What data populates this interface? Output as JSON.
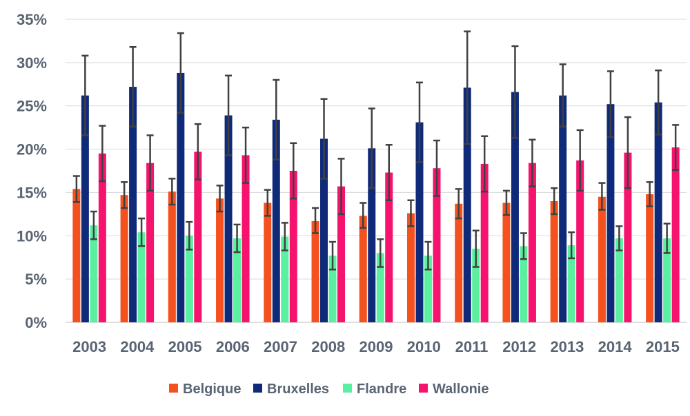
{
  "chart_data": {
    "type": "bar",
    "categories": [
      "2003",
      "2004",
      "2005",
      "2006",
      "2007",
      "2008",
      "2009",
      "2010",
      "2011",
      "2012",
      "2013",
      "2014",
      "2015"
    ],
    "ylim": [
      0,
      35
    ],
    "yticks": [
      0,
      5,
      10,
      15,
      20,
      25,
      30,
      35
    ],
    "ytick_labels": [
      "0%",
      "5%",
      "10%",
      "15%",
      "20%",
      "25%",
      "30%",
      "35%"
    ],
    "grid": true,
    "legend_position": "bottom",
    "series": [
      {
        "name": "Belgique",
        "color": "#f4511e",
        "values": [
          15.4,
          14.7,
          15.1,
          14.3,
          13.8,
          11.7,
          12.3,
          12.6,
          13.7,
          13.8,
          14.0,
          14.5,
          14.8
        ],
        "err_low": [
          13.9,
          13.2,
          13.6,
          12.8,
          12.3,
          10.3,
          10.9,
          11.1,
          12.0,
          12.4,
          12.5,
          13.0,
          13.4
        ],
        "err_high": [
          16.9,
          16.2,
          16.6,
          15.8,
          15.3,
          13.2,
          13.8,
          14.1,
          15.4,
          15.2,
          15.5,
          16.1,
          16.2
        ]
      },
      {
        "name": "Bruxelles",
        "color": "#102a7a",
        "values": [
          26.2,
          27.2,
          28.8,
          23.9,
          23.4,
          21.2,
          20.1,
          23.1,
          27.1,
          26.6,
          26.2,
          25.2,
          25.4
        ],
        "err_low": [
          21.6,
          22.6,
          24.2,
          19.3,
          18.8,
          16.6,
          15.5,
          18.5,
          20.6,
          21.3,
          22.6,
          21.4,
          21.7
        ],
        "err_high": [
          30.8,
          31.8,
          33.4,
          28.5,
          28.0,
          25.8,
          24.7,
          27.7,
          33.6,
          31.9,
          29.8,
          29.0,
          29.1
        ]
      },
      {
        "name": "Flandre",
        "color": "#5af0a0",
        "values": [
          11.2,
          10.4,
          10.0,
          9.7,
          9.9,
          7.7,
          8.0,
          7.7,
          8.5,
          8.8,
          8.9,
          9.7,
          9.7
        ],
        "err_low": [
          9.6,
          8.8,
          8.4,
          8.1,
          8.3,
          6.1,
          6.4,
          6.1,
          6.4,
          7.3,
          7.4,
          8.3,
          8.0
        ],
        "err_high": [
          12.8,
          12.0,
          11.6,
          11.3,
          11.5,
          9.3,
          9.6,
          9.3,
          10.6,
          10.3,
          10.4,
          11.1,
          11.4
        ]
      },
      {
        "name": "Wallonie",
        "color": "#f5136e",
        "values": [
          19.5,
          18.4,
          19.7,
          19.3,
          17.5,
          15.7,
          17.3,
          17.8,
          18.3,
          18.4,
          18.7,
          19.6,
          20.2
        ],
        "err_low": [
          16.3,
          15.2,
          16.5,
          16.1,
          14.3,
          12.5,
          14.1,
          14.6,
          15.1,
          15.7,
          15.2,
          15.5,
          17.6
        ],
        "err_high": [
          22.7,
          21.6,
          22.9,
          22.5,
          20.7,
          18.9,
          20.5,
          21.0,
          21.5,
          21.1,
          22.2,
          23.7,
          22.8
        ]
      }
    ]
  }
}
